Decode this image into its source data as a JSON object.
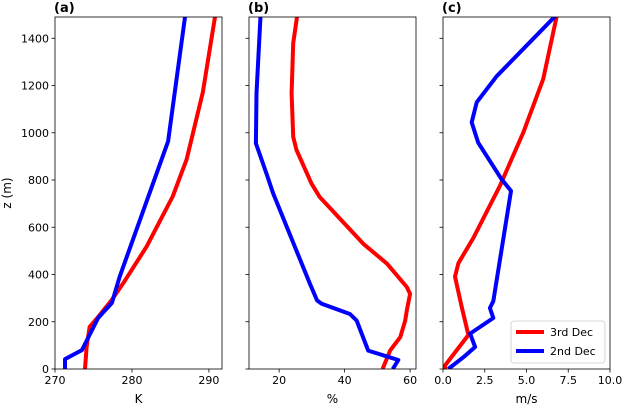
{
  "chart_data": [
    {
      "type": "line",
      "panel_label": "(a)",
      "xlabel": "K",
      "ylabel": "z (m)",
      "xlim": [
        270,
        291.7
      ],
      "ylim": [
        0,
        1490
      ],
      "xticks": [
        270,
        280,
        290
      ],
      "xtick_labels": [
        "270",
        "280",
        "290"
      ],
      "yticks": [
        0,
        200,
        400,
        600,
        800,
        1000,
        1200,
        1400
      ],
      "ytick_labels": [
        "0",
        "200",
        "400",
        "600",
        "800",
        "1000",
        "1200",
        "1400"
      ],
      "grid": false,
      "series": [
        {
          "name": "3rd Dec",
          "color": "#ff0000",
          "x": [
            273.9,
            274.1,
            274.5,
            275.6,
            277.4,
            278.9,
            281.9,
            285.3,
            287.1,
            289.2,
            290.8
          ],
          "y": [
            0,
            93,
            178,
            220,
            293,
            365,
            518,
            730,
            887,
            1171,
            1493
          ]
        },
        {
          "name": "2nd Dec",
          "color": "#0000ff",
          "x": [
            271.3,
            271.3,
            273.5,
            275.6,
            277.4,
            278.4,
            284.7,
            286.9
          ],
          "y": [
            0,
            42,
            80,
            216,
            280,
            390,
            964,
            1493
          ]
        }
      ]
    },
    {
      "type": "line",
      "panel_label": "(b)",
      "xlabel": "%",
      "xlim": [
        10.8,
        61.8
      ],
      "ylim": [
        0,
        1490
      ],
      "xticks": [
        20,
        40,
        60
      ],
      "xtick_labels": [
        "20",
        "40",
        "60"
      ],
      "yticks": [
        0,
        200,
        400,
        600,
        800,
        1000,
        1200,
        1400
      ],
      "grid": false,
      "series": [
        {
          "name": "3rd Dec",
          "color": "#ff0000",
          "x": [
            51.6,
            53.9,
            57.0,
            58.5,
            59.0,
            60.0,
            59.0,
            52.9,
            45.7,
            32.4,
            29.9,
            25.3,
            24.3,
            23.8,
            24.3,
            25.5
          ],
          "y": [
            0,
            78,
            135,
            205,
            248,
            318,
            347,
            446,
            530,
            728,
            785,
            927,
            983,
            1167,
            1379,
            1493
          ]
        },
        {
          "name": "2nd Dec",
          "color": "#0000ff",
          "x": [
            54.7,
            56.4,
            47.2,
            43.7,
            41.6,
            33.0,
            31.6,
            29.4,
            18.2,
            16.1,
            12.9,
            13.1,
            14.3
          ],
          "y": [
            0,
            38,
            78,
            205,
            233,
            276,
            290,
            361,
            743,
            828,
            955,
            1167,
            1493
          ]
        }
      ]
    },
    {
      "type": "line",
      "panel_label": "(c)",
      "xlabel": "m/s",
      "xlim": [
        0,
        10
      ],
      "ylim": [
        0,
        1490
      ],
      "xticks": [
        0,
        2.5,
        5,
        7.5,
        10
      ],
      "xtick_labels": [
        "0.0",
        "2.5",
        "5.0",
        "7.5",
        "10.0"
      ],
      "yticks": [
        0,
        200,
        400,
        600,
        800,
        1000,
        1200,
        1400
      ],
      "grid": false,
      "legend": {
        "placement": "lower-right",
        "entries": [
          "3rd Dec",
          "2nd Dec"
        ]
      },
      "series": [
        {
          "name": "3rd Dec",
          "color": "#ff0000",
          "x": [
            0.12,
            0.12,
            1.52,
            1.12,
            0.72,
            0.92,
            1.82,
            3.41,
            4.81,
            6.0,
            6.81
          ],
          "y": [
            0,
            15,
            144,
            263,
            391,
            448,
            555,
            775,
            1001,
            1227,
            1493
          ]
        },
        {
          "name": "2nd Dec",
          "color": "#0000ff",
          "x": [
            0.32,
            1.22,
            1.92,
            1.62,
            3.01,
            2.81,
            3.01,
            4.07,
            3.51,
            2.11,
            1.72,
            2.02,
            3.21,
            6.71
          ],
          "y": [
            0,
            50,
            93,
            150,
            216,
            258,
            287,
            754,
            803,
            958,
            1044,
            1129,
            1239,
            1493
          ]
        }
      ]
    }
  ]
}
